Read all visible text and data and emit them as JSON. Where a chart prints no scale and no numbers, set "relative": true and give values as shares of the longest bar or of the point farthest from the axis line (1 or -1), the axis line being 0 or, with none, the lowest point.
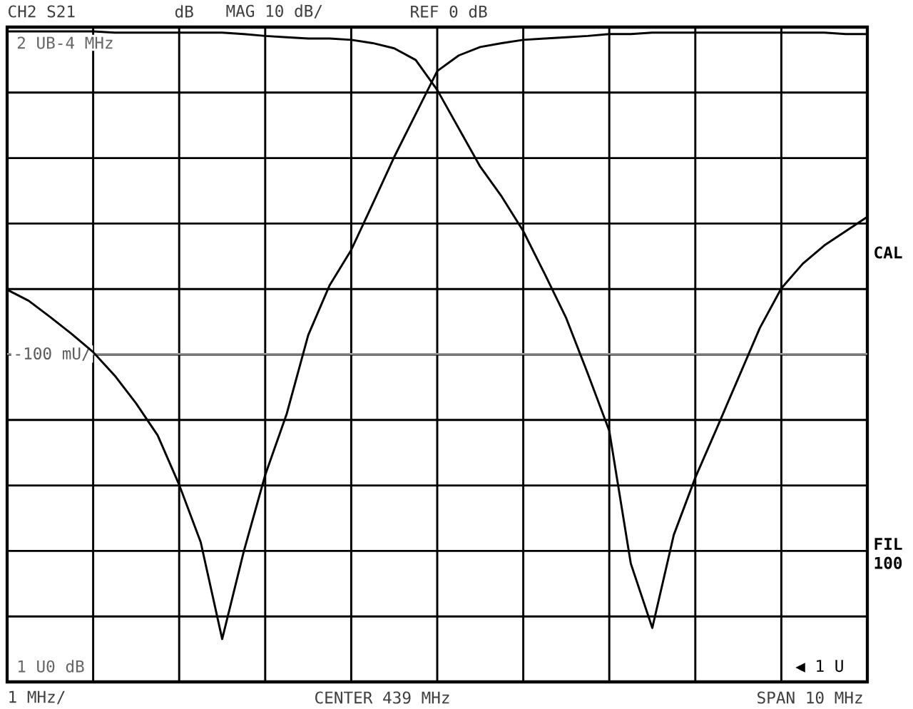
{
  "chart_data": {
    "type": "line",
    "relative": true,
    "grid": true,
    "tick_labels": false,
    "categories": [
      null,
      null,
      null,
      null,
      null,
      null,
      null,
      null,
      null,
      null,
      null,
      null,
      null,
      null,
      null,
      null,
      null,
      null,
      null,
      null,
      null,
      null,
      null,
      null,
      null,
      null,
      null,
      null,
      null,
      null,
      null,
      null,
      null,
      null,
      null,
      null,
      null,
      null,
      null,
      null,
      null
    ],
    "series": [
      {
        "color": "#000000",
        "values": [
          0.603,
          0.586,
          0.561,
          0.535,
          0.507,
          0.471,
          0.428,
          0.379,
          0.303,
          0.215,
          0.066,
          0.2,
          0.318,
          0.412,
          0.533,
          0.61,
          0.664,
          0.735,
          0.807,
          0.873,
          0.939,
          0.963,
          0.976,
          0.982,
          0.987,
          0.989,
          0.991,
          0.993,
          0.996,
          0.996,
          0.998,
          0.998,
          0.998,
          0.998,
          0.998,
          0.998,
          0.998,
          0.998,
          0.998,
          0.996,
          0.996
        ]
      },
      {
        "color": "#000000",
        "values": [
          1.0,
          1.0,
          1.0,
          1.0,
          1.0,
          0.998,
          0.998,
          0.998,
          0.998,
          0.998,
          0.998,
          0.996,
          0.993,
          0.991,
          0.989,
          0.989,
          0.987,
          0.982,
          0.974,
          0.956,
          0.91,
          0.851,
          0.792,
          0.746,
          0.693,
          0.627,
          0.559,
          0.474,
          0.386,
          0.182,
          0.083,
          0.226,
          0.314,
          0.39,
          0.467,
          0.544,
          0.605,
          0.643,
          0.671,
          0.693,
          0.715
        ]
      }
    ],
    "ref_lines": [
      {
        "axis": "y",
        "value": 0.504,
        "label": "-100 mU/",
        "color": "#999999"
      }
    ],
    "annotations": [
      "CH2  S21",
      "dB",
      "MAG  10 dB/",
      "REF 0 dB",
      "2 UB-4 MHz",
      "1 U0 dB",
      "◀ 1 U",
      "CAL",
      "FIL 100",
      "1 MHz/",
      "CENTER 439 MHz",
      "SPAN 10 MHz"
    ]
  }
}
